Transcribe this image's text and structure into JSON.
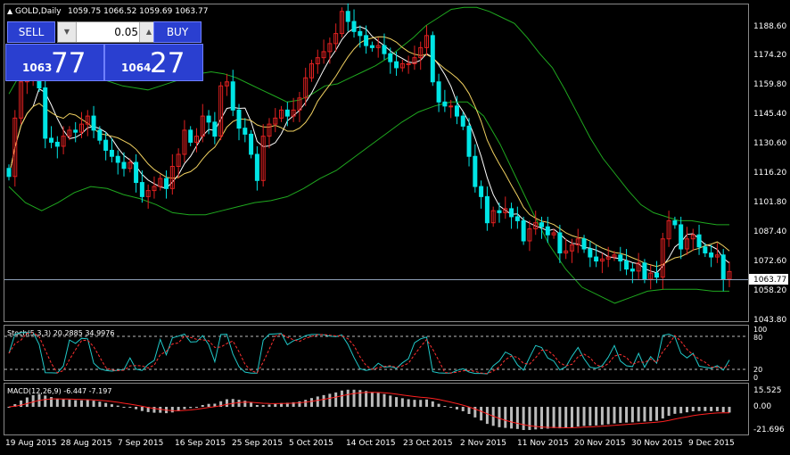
{
  "header": {
    "symbol": "GOLD,Daily",
    "ohlc": "1059.75 1066.52 1059.69 1063.77"
  },
  "trade_panel": {
    "sell_label": "SELL",
    "buy_label": "BUY",
    "lot_value": "0.05",
    "sell_price_small": "1063",
    "sell_price_big": "77",
    "buy_price_small": "1064",
    "buy_price_big": "27"
  },
  "price_axis": {
    "labels": [
      "1188.60",
      "1174.20",
      "1159.80",
      "1145.40",
      "1130.60",
      "1116.20",
      "1101.80",
      "1087.40",
      "1072.60",
      "1058.20",
      "1043.80"
    ],
    "current_price": "1063.77"
  },
  "stochastic": {
    "label": "Stoch(5,3,3) 20.2885 34.9976",
    "scale": [
      "100",
      "80",
      "20",
      "0"
    ]
  },
  "macd": {
    "label": "MACD(12,26,9) -6.447 -7.197",
    "scale": [
      "15.525",
      "0.00",
      "-21.696"
    ]
  },
  "time_axis": {
    "labels": [
      "19 Aug 2015",
      "28 Aug 2015",
      "7 Sep 2015",
      "16 Sep 2015",
      "25 Sep 2015",
      "5 Oct 2015",
      "14 Oct 2015",
      "23 Oct 2015",
      "2 Nov 2015",
      "11 Nov 2015",
      "20 Nov 2015",
      "30 Nov 2015",
      "9 Dec 2015"
    ]
  },
  "colors": {
    "bull_candle": "#e02020",
    "bear_candle": "#00e5e5",
    "bollinger": "#1fa81f",
    "ma_fast": "#ffffff",
    "ma_slow": "#f0d060",
    "signal_line": "#ff2020",
    "macd_hist": "#bbbbbb",
    "grid_text": "#ffffff",
    "panel_button": "#2a3fd0"
  },
  "chart_data": {
    "type": "candlestick",
    "symbol": "GOLD",
    "timeframe": "Daily",
    "price_range": [
      1040,
      1196
    ],
    "current_price": 1063.77,
    "closes": [
      1111,
      1140,
      1158,
      1160,
      1160,
      1155,
      1130,
      1128,
      1126,
      1131,
      1134,
      1133,
      1137,
      1141,
      1134,
      1129,
      1124,
      1121,
      1118,
      1115,
      1118,
      1108,
      1101,
      1104,
      1106,
      1110,
      1105,
      1116,
      1122,
      1134,
      1128,
      1131,
      1141,
      1138,
      1131,
      1156,
      1158,
      1144,
      1135,
      1132,
      1122,
      1109,
      1131,
      1137,
      1140,
      1144,
      1141,
      1144,
      1150,
      1160,
      1167,
      1170,
      1173,
      1177,
      1182,
      1193,
      1188,
      1183,
      1181,
      1176,
      1175,
      1176,
      1172,
      1168,
      1165,
      1167,
      1167,
      1170,
      1175,
      1181,
      1158,
      1148,
      1146,
      1146,
      1141,
      1136,
      1121,
      1106,
      1101,
      1088,
      1094,
      1093,
      1095,
      1091,
      1089,
      1079,
      1085,
      1088,
      1086,
      1082,
      1083,
      1073,
      1074,
      1077,
      1080,
      1075,
      1071,
      1069,
      1070,
      1071,
      1072,
      1069,
      1065,
      1064,
      1068,
      1060,
      1063,
      1061,
      1080,
      1089,
      1087,
      1075,
      1080,
      1082,
      1076,
      1073,
      1071,
      1072,
      1060,
      1063.77
    ],
    "bollinger_upper": [
      1152,
      1163,
      1170,
      1172,
      1170,
      1166,
      1162,
      1160,
      1158,
      1156,
      1155,
      1154,
      1156,
      1158,
      1160,
      1162,
      1163,
      1162,
      1160,
      1157,
      1154,
      1151,
      1148,
      1149,
      1152,
      1156,
      1157,
      1160,
      1163,
      1166,
      1170,
      1175,
      1180,
      1186,
      1190,
      1194,
      1195,
      1195,
      1193,
      1190,
      1187,
      1180,
      1172,
      1165,
      1154,
      1142,
      1130,
      1120,
      1112,
      1104,
      1097,
      1093,
      1091,
      1089,
      1089,
      1088,
      1087,
      1087
    ],
    "bollinger_lower": [
      1106,
      1098,
      1094,
      1098,
      1103,
      1106,
      1105,
      1102,
      1100,
      1097,
      1093,
      1092,
      1092,
      1094,
      1096,
      1098,
      1099,
      1101,
      1105,
      1110,
      1114,
      1120,
      1126,
      1132,
      1138,
      1143,
      1146,
      1148,
      1148,
      1141,
      1127,
      1110,
      1093,
      1077,
      1065,
      1056,
      1052,
      1048,
      1051,
      1054,
      1055,
      1055,
      1055,
      1054,
      1054
    ],
    "stochastic": {
      "k": 20.2885,
      "d": 34.9976,
      "levels": [
        20,
        80
      ]
    },
    "macd": {
      "main": -6.447,
      "signal": -7.197,
      "range": [
        -21.696,
        15.525
      ]
    }
  }
}
